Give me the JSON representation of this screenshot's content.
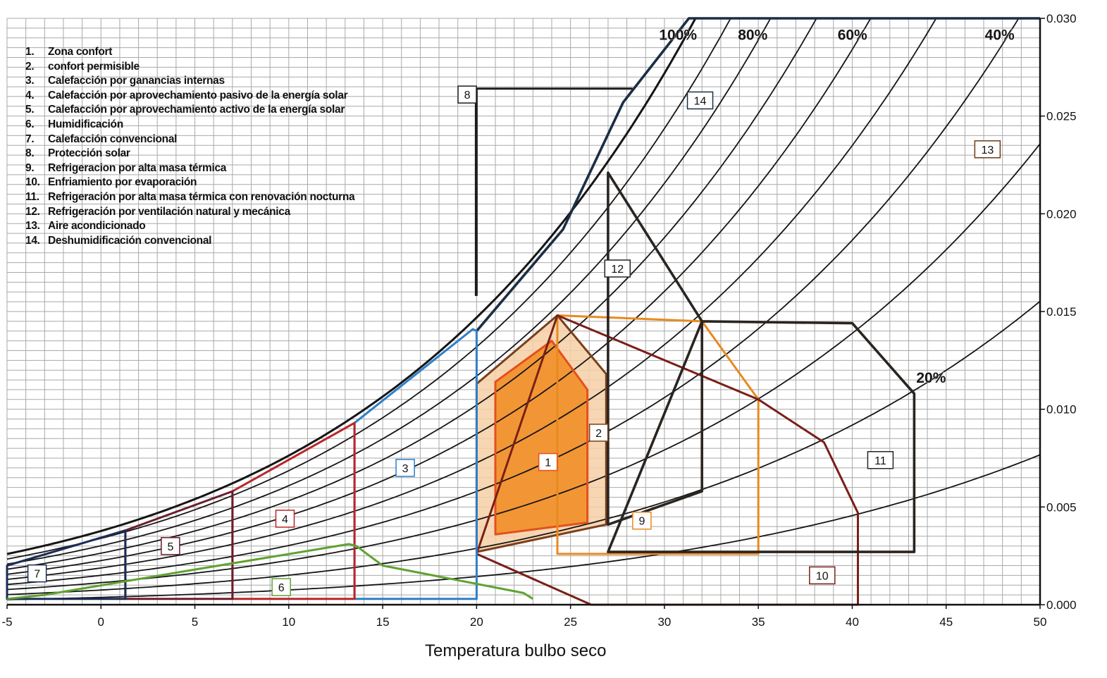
{
  "chart_data": {
    "type": "line",
    "title": "",
    "xlabel": "Temperatura bulbo seco",
    "ylabel": "",
    "xlim": [
      -5,
      50
    ],
    "ylim": [
      0,
      0.03
    ],
    "x_ticks": [
      -5,
      0,
      5,
      10,
      15,
      20,
      25,
      30,
      35,
      40,
      45,
      50
    ],
    "y_ticks": [
      "0.000",
      "0.005",
      "0.010",
      "0.015",
      "0.020",
      "0.025",
      "0.030"
    ],
    "y_axis_side": "right",
    "grid": true,
    "legend_position": "top-left",
    "legend": [
      {
        "num": "1.",
        "text": "Zona confort"
      },
      {
        "num": "2.",
        "text": "confort permisible"
      },
      {
        "num": "3.",
        "text": "Calefacción por ganancias internas"
      },
      {
        "num": "4.",
        "text": "Calefacción por aprovechamiento pasivo de la energía solar"
      },
      {
        "num": "5.",
        "text": "Calefacción por aprovechamiento activo de la energía solar"
      },
      {
        "num": "6.",
        "text": "Humidificación"
      },
      {
        "num": "7.",
        "text": "Calefacción convencional"
      },
      {
        "num": "8.",
        "text": "Protección solar"
      },
      {
        "num": "9.",
        "text": "Refrigeracion por alta masa térmica"
      },
      {
        "num": "10.",
        "text": "Enfriamiento por evaporación"
      },
      {
        "num": "11.",
        "text": "Refrigeración por alta masa térmica con renovación nocturna"
      },
      {
        "num": "12.",
        "text": "Refrigeración por ventilación natural y mecánica"
      },
      {
        "num": "13.",
        "text": "Aire acondicionado"
      },
      {
        "num": "14.",
        "text": "Deshumidificación convencional"
      }
    ],
    "rh_curves": [
      {
        "rh": 100,
        "label": "100%",
        "show_label": true
      },
      {
        "rh": 90,
        "label": "",
        "show_label": false
      },
      {
        "rh": 80,
        "label": "80%",
        "show_label": true
      },
      {
        "rh": 70,
        "label": "",
        "show_label": false
      },
      {
        "rh": 60,
        "label": "60%",
        "show_label": true
      },
      {
        "rh": 50,
        "label": "",
        "show_label": false
      },
      {
        "rh": 40,
        "label": "40%",
        "show_label": true
      },
      {
        "rh": 30,
        "label": "",
        "show_label": false
      },
      {
        "rh": 20,
        "label": "20%",
        "show_label": true
      },
      {
        "rh": 10,
        "label": "",
        "show_label": false
      }
    ],
    "zones": [
      {
        "id": "2",
        "label": "2",
        "stroke": "#7a3f1a",
        "fill": "#f6cfa6",
        "label_at": [
          26.5,
          0.0088
        ],
        "polygon": [
          [
            20,
            0.0113
          ],
          [
            24.3,
            0.0148
          ],
          [
            26.9,
            0.0118
          ],
          [
            26.9,
            0.0041
          ],
          [
            20,
            0.0027
          ]
        ]
      },
      {
        "id": "1",
        "label": "1",
        "stroke": "#e4501c",
        "fill": "#f1922e",
        "label_at": [
          23.8,
          0.0073
        ],
        "polygon": [
          [
            21,
            0.0114
          ],
          [
            24,
            0.0135
          ],
          [
            25.9,
            0.011
          ],
          [
            25.9,
            0.0042
          ],
          [
            21,
            0.0036
          ]
        ]
      },
      {
        "id": "9",
        "label": "9",
        "stroke": "#e88a1e",
        "fill": "none",
        "label_at": [
          28.8,
          0.0043
        ],
        "polygon": [
          [
            24.3,
            0.0148
          ],
          [
            32,
            0.0145
          ],
          [
            35,
            0.0105
          ],
          [
            35,
            0.0026
          ],
          [
            24.3,
            0.0026
          ]
        ]
      },
      {
        "id": "10",
        "label": "10",
        "stroke": "#7a1f17",
        "fill": "none",
        "label_at": [
          38.4,
          0.0015
        ],
        "polygon": [
          [
            24.3,
            0.0148
          ],
          [
            35,
            0.0105
          ],
          [
            38.5,
            0.0083
          ],
          [
            40.3,
            0.0047
          ],
          [
            40.3,
            0.0
          ],
          [
            26.1,
            0.0
          ],
          [
            20,
            0.0026
          ]
        ]
      },
      {
        "id": "11",
        "label": "11",
        "stroke": "#2a2520",
        "fill": "none",
        "label_at": [
          41.5,
          0.0074
        ],
        "polygon": [
          [
            32,
            0.0145
          ],
          [
            40,
            0.0144
          ],
          [
            43.3,
            0.0108
          ],
          [
            43.3,
            0.0027
          ],
          [
            27,
            0.0027
          ]
        ]
      },
      {
        "id": "12",
        "label": "12",
        "stroke": "#2a2520",
        "fill": "none",
        "label_at": [
          27.5,
          0.0172
        ],
        "polygon": [
          [
            27,
            0.0221
          ],
          [
            32,
            0.0145
          ],
          [
            32,
            0.0058
          ],
          [
            27,
            0.0041
          ]
        ]
      },
      {
        "id": "14",
        "label": "14",
        "stroke": "#1b2e45",
        "fill": "none",
        "label_at": [
          31.9,
          0.0258
        ],
        "polygon": [
          [
            20,
            0.014
          ],
          [
            24.6,
            0.0192
          ],
          [
            27.8,
            0.0257
          ],
          [
            31.3,
            0.03
          ],
          [
            50,
            0.03
          ]
        ]
      },
      {
        "id": "3",
        "label": "3",
        "stroke": "#2d7fc9",
        "fill": "none",
        "label_at": [
          16.2,
          0.007
        ],
        "polygon": [
          [
            13.5,
            0.0093
          ],
          [
            19.8,
            0.0141
          ],
          [
            20,
            0.014
          ],
          [
            20,
            0.0003
          ],
          [
            13.5,
            0.0003
          ]
        ]
      },
      {
        "id": "4",
        "label": "4",
        "stroke": "#b8262a",
        "fill": "none",
        "label_at": [
          9.8,
          0.0044
        ],
        "polygon": [
          [
            7,
            0.0058
          ],
          [
            13.5,
            0.0093
          ],
          [
            13.5,
            0.0003
          ],
          [
            7,
            0.0003
          ]
        ]
      },
      {
        "id": "5",
        "label": "5",
        "stroke": "#6a1e2d",
        "fill": "none",
        "label_at": [
          3.7,
          0.003
        ],
        "polygon": [
          [
            1.3,
            0.0038
          ],
          [
            7,
            0.0058
          ],
          [
            7,
            0.0003
          ],
          [
            1.3,
            0.0003
          ]
        ]
      },
      {
        "id": "7",
        "label": "7",
        "stroke": "#1b2c55",
        "fill": "none",
        "label_at": [
          -3.4,
          0.0016
        ],
        "polygon": [
          [
            -5,
            0.002
          ],
          [
            1.3,
            0.0038
          ],
          [
            1.3,
            0.0003
          ],
          [
            -5,
            0.0003
          ]
        ]
      },
      {
        "id": "6",
        "label": "6",
        "stroke": "#5fa231",
        "fill": "none",
        "label_at": [
          9.6,
          0.0009
        ],
        "polygon": [
          [
            -5,
            0.0003
          ],
          [
            -3,
            0.0005
          ],
          [
            5,
            0.0018
          ],
          [
            13.2,
            0.0031
          ],
          [
            13.6,
            0.003
          ],
          [
            15,
            0.002
          ],
          [
            22.5,
            0.0006
          ],
          [
            23,
            0.0003
          ]
        ]
      },
      {
        "id": "8",
        "label": "8",
        "stroke": "#1d1d1d",
        "fill": "none",
        "label_at": [
          19.5,
          0.0261
        ],
        "polygon": [
          [
            20,
            0.0158
          ],
          [
            20,
            0.0264
          ],
          [
            28.3,
            0.0264
          ]
        ]
      },
      {
        "id": "13",
        "label": "13",
        "stroke": "#6b3a17",
        "fill": "none",
        "label_at": [
          47.2,
          0.0233
        ],
        "polygon": []
      }
    ]
  }
}
